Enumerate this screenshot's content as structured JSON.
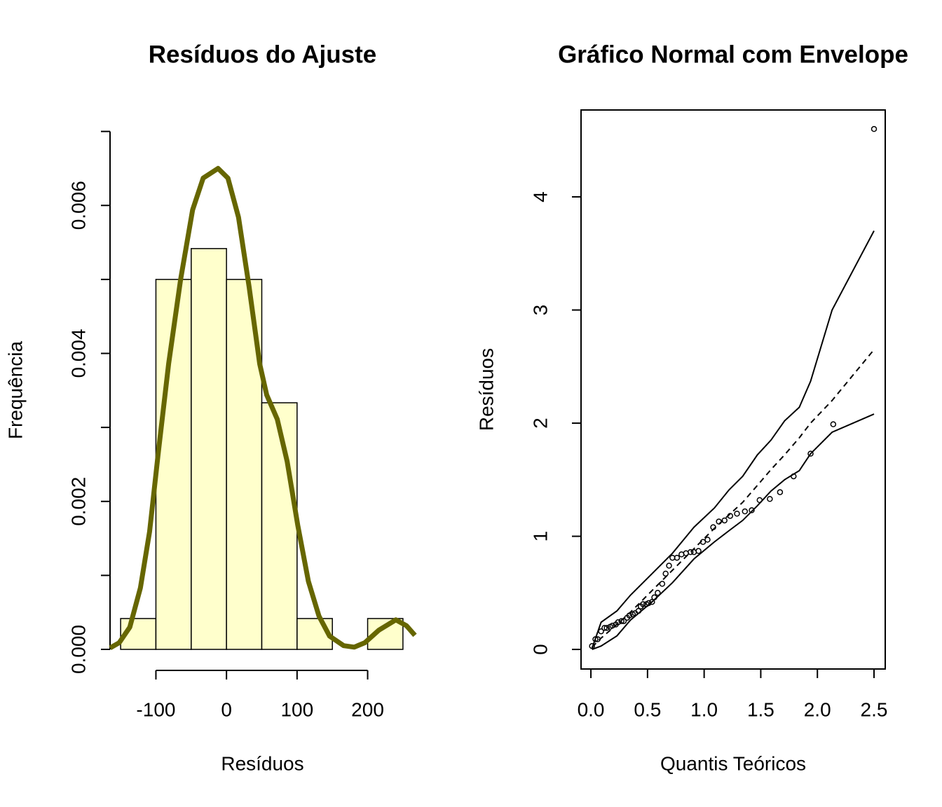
{
  "chart_data": [
    {
      "type": "histogram",
      "title": "Resíduos do Ajuste",
      "x_label": "Resíduos",
      "y_label": "Frequência",
      "bins": [
        -150,
        -100,
        -50,
        0,
        50,
        100,
        150,
        200,
        250
      ],
      "values": [
        0.000417,
        0.005,
        0.005417,
        0.005,
        0.003333,
        0.000417,
        0,
        0.000417
      ],
      "color": "#ffffcc",
      "box": false,
      "density_curve": {
        "color": "#666600",
        "x": [
          -165,
          -152,
          -137,
          -122,
          -109,
          -97,
          -82,
          -65,
          -48,
          -33,
          -12,
          2,
          17,
          32,
          47,
          57,
          72,
          86,
          101,
          116,
          131,
          146,
          166,
          181,
          196,
          216,
          240,
          255,
          267
        ],
        "y": [
          2e-05,
          9e-05,
          0.0003,
          0.00083,
          0.00159,
          0.00263,
          0.00386,
          0.005,
          0.00594,
          0.00637,
          0.0065,
          0.00637,
          0.00584,
          0.0049,
          0.00386,
          0.00344,
          0.00311,
          0.00254,
          0.00168,
          0.00092,
          0.00045,
          0.00018,
          5e-05,
          3e-05,
          9e-05,
          0.00026,
          0.0004,
          0.00032,
          0.00019
        ]
      },
      "xlim": [
        -165,
        267
      ],
      "ylim": [
        -0.000284,
        0.00729
      ],
      "xticks": [
        -100,
        0,
        100,
        200
      ],
      "yticks": [
        {
          "value": 0,
          "label": "0.000"
        },
        {
          "value": 0.001,
          "label": null
        },
        {
          "value": 0.002,
          "label": "0.002"
        },
        {
          "value": 0.003,
          "label": null
        },
        {
          "value": 0.004,
          "label": "0.004"
        },
        {
          "value": 0.005,
          "label": null
        },
        {
          "value": 0.006,
          "label": "0.006"
        },
        {
          "value": 0.007,
          "label": null
        }
      ]
    },
    {
      "type": "scatter",
      "title": "Gráfico Normal com Envelope",
      "x_label": "Quantis Teóricos",
      "y_label": "Resíduos",
      "color": "#000000",
      "box": true,
      "x": [
        0.01,
        0.04,
        0.06,
        0.09,
        0.12,
        0.14,
        0.17,
        0.19,
        0.22,
        0.24,
        0.27,
        0.29,
        0.32,
        0.34,
        0.37,
        0.39,
        0.42,
        0.44,
        0.46,
        0.49,
        0.51,
        0.54,
        0.56,
        0.59,
        0.63,
        0.66,
        0.69,
        0.72,
        0.76,
        0.8,
        0.84,
        0.88,
        0.91,
        0.95,
        0.99,
        1.03,
        1.08,
        1.13,
        1.18,
        1.23,
        1.29,
        1.36,
        1.42,
        1.49,
        1.58,
        1.67,
        1.79,
        1.94,
        2.14,
        2.5
      ],
      "y": [
        0.03,
        0.09,
        0.09,
        0.16,
        0.19,
        0.19,
        0.2,
        0.21,
        0.22,
        0.24,
        0.25,
        0.25,
        0.28,
        0.3,
        0.31,
        0.32,
        0.34,
        0.38,
        0.4,
        0.4,
        0.41,
        0.42,
        0.46,
        0.5,
        0.58,
        0.67,
        0.74,
        0.81,
        0.81,
        0.84,
        0.85,
        0.86,
        0.86,
        0.87,
        0.95,
        0.97,
        1.08,
        1.13,
        1.14,
        1.18,
        1.2,
        1.22,
        1.23,
        1.32,
        1.33,
        1.39,
        1.53,
        1.73,
        1.99,
        4.6
      ],
      "envelope": {
        "color": "#000000",
        "x": [
          0.01,
          0.09,
          0.23,
          0.35,
          0.54,
          0.72,
          0.91,
          1.09,
          1.22,
          1.34,
          1.47,
          1.59,
          1.71,
          1.84,
          1.94,
          2.13,
          2.5
        ],
        "upper": [
          0.01,
          0.24,
          0.34,
          0.48,
          0.67,
          0.85,
          1.08,
          1.25,
          1.41,
          1.53,
          1.72,
          1.85,
          2.02,
          2.14,
          2.37,
          3.0,
          3.7
        ],
        "median": [
          0.02,
          0.1,
          0.22,
          0.33,
          0.52,
          0.7,
          0.89,
          1.07,
          1.19,
          1.3,
          1.45,
          1.59,
          1.72,
          1.87,
          2.0,
          2.2,
          2.65
        ],
        "lower": [
          0.0,
          0.03,
          0.12,
          0.26,
          0.42,
          0.59,
          0.8,
          0.95,
          1.05,
          1.14,
          1.27,
          1.4,
          1.5,
          1.58,
          1.73,
          1.92,
          2.08
        ]
      },
      "xlim": [
        -0.087,
        2.599
      ],
      "ylim": [
        -0.173,
        4.768
      ],
      "xticks": [
        {
          "value": 0,
          "label": "0.0"
        },
        0.5,
        {
          "value": 1,
          "label": "1.0"
        },
        1.5,
        {
          "value": 2,
          "label": "2.0"
        },
        2.5
      ],
      "yticks": [
        0,
        1,
        2,
        3,
        4
      ]
    }
  ]
}
